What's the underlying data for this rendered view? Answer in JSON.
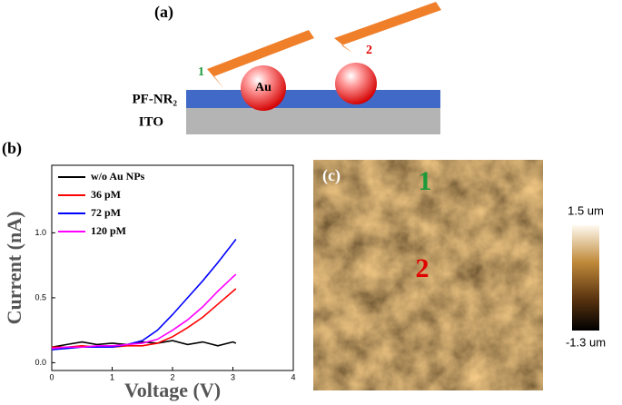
{
  "diagram": {
    "label": "(a)",
    "tip_1": "1",
    "tip_2": "2",
    "particle": "Au",
    "layer_top": "PF-NR₂",
    "layer_bottom": "ITO"
  },
  "chart_data": {
    "type": "line",
    "label": "(b)",
    "xlabel": "Voltage (V)",
    "ylabel": "Current (nA)",
    "xlim": [
      0,
      4
    ],
    "xticks": [
      0,
      1,
      2,
      3,
      4
    ],
    "ylim": [
      -0.06,
      1.52
    ],
    "yticks": [
      {
        "value": 0,
        "label": "0.0"
      },
      {
        "value": 0.5,
        "label": "0.5"
      },
      {
        "value": 1,
        "label": "1.0"
      }
    ],
    "legend": "upper left",
    "x": [
      0,
      0.25,
      0.5,
      0.75,
      1,
      1.25,
      1.5,
      1.75,
      2,
      2.25,
      2.5,
      2.75,
      3,
      3.05
    ],
    "series": [
      {
        "name": "w/o Au NPs",
        "color": "#000000",
        "values": [
          0.12,
          0.14,
          0.16,
          0.14,
          0.15,
          0.14,
          0.16,
          0.15,
          0.17,
          0.14,
          0.16,
          0.13,
          0.16,
          0.15
        ]
      },
      {
        "name": "36 pM",
        "color": "#ff0000",
        "values": [
          0.12,
          0.12,
          0.13,
          0.12,
          0.12,
          0.13,
          0.13,
          0.15,
          0.2,
          0.27,
          0.35,
          0.45,
          0.55,
          0.57
        ]
      },
      {
        "name": "72 pM",
        "color": "#0000ff",
        "values": [
          0.1,
          0.11,
          0.12,
          0.12,
          0.12,
          0.14,
          0.17,
          0.25,
          0.37,
          0.5,
          0.63,
          0.77,
          0.92,
          0.95
        ]
      },
      {
        "name": "120 pM",
        "color": "#ff00ff",
        "values": [
          0.11,
          0.12,
          0.12,
          0.13,
          0.13,
          0.14,
          0.15,
          0.18,
          0.25,
          0.33,
          0.43,
          0.55,
          0.66,
          0.68
        ]
      }
    ]
  },
  "image": {
    "label": "(c)",
    "mark_1": "1",
    "mark_2": "2",
    "scale_max": "1.5 um",
    "scale_min": "-1.3 um"
  }
}
